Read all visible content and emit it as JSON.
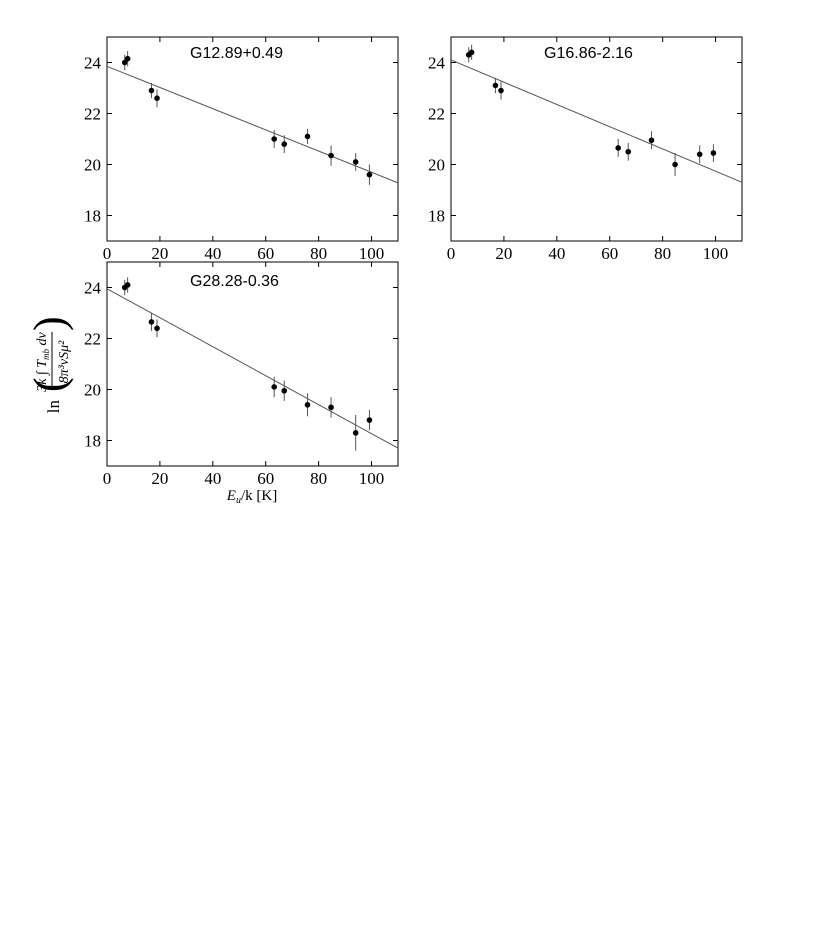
{
  "figure": {
    "xlabel_main": "E",
    "xlabel_sub": "u",
    "xlabel_rest": "/k [K]",
    "ylabel_ln": "ln",
    "ylabel_numerator": "3k ∫ T",
    "ylabel_numerator_sub": "mb",
    "ylabel_numerator_rest": " dv",
    "ylabel_denominator": "8π³νSμ²"
  },
  "chart_data": [
    {
      "type": "scatter",
      "title": "G12.89+0.49",
      "xlim": [
        0,
        110
      ],
      "ylim": [
        17,
        25
      ],
      "xticks": [
        0,
        20,
        40,
        60,
        80,
        100
      ],
      "xtick_labels": [
        "0",
        "20",
        "40",
        "60",
        "80",
        "100"
      ],
      "yticks": [
        18,
        20,
        22,
        24
      ],
      "ytick_labels": [
        "18",
        "20",
        "22",
        "24"
      ],
      "grid": false,
      "points": [
        {
          "x": 6.7,
          "y": 24.0,
          "err": 0.3
        },
        {
          "x": 7.8,
          "y": 24.15,
          "err": 0.3
        },
        {
          "x": 16.8,
          "y": 22.9,
          "err": 0.3
        },
        {
          "x": 18.9,
          "y": 22.6,
          "err": 0.35
        },
        {
          "x": 63.2,
          "y": 21.0,
          "err": 0.35
        },
        {
          "x": 67.0,
          "y": 20.8,
          "err": 0.35
        },
        {
          "x": 75.8,
          "y": 21.1,
          "err": 0.3
        },
        {
          "x": 84.7,
          "y": 20.35,
          "err": 0.4
        },
        {
          "x": 94.0,
          "y": 20.1,
          "err": 0.35
        },
        {
          "x": 99.2,
          "y": 19.6,
          "err": 0.4
        }
      ],
      "fit": {
        "x": [
          0,
          110
        ],
        "y": [
          23.85,
          19.28
        ]
      }
    },
    {
      "type": "scatter",
      "title": "G16.86-2.16",
      "xlim": [
        0,
        110
      ],
      "ylim": [
        17,
        25
      ],
      "xticks": [
        0,
        20,
        40,
        60,
        80,
        100
      ],
      "xtick_labels": [
        "0",
        "20",
        "40",
        "60",
        "80",
        "100"
      ],
      "yticks": [
        18,
        20,
        22,
        24
      ],
      "ytick_labels": [
        "18",
        "20",
        "22",
        "24"
      ],
      "grid": false,
      "points": [
        {
          "x": 6.7,
          "y": 24.3,
          "err": 0.3
        },
        {
          "x": 7.8,
          "y": 24.4,
          "err": 0.3
        },
        {
          "x": 16.8,
          "y": 23.1,
          "err": 0.3
        },
        {
          "x": 18.9,
          "y": 22.9,
          "err": 0.35
        },
        {
          "x": 63.2,
          "y": 20.65,
          "err": 0.35
        },
        {
          "x": 67.0,
          "y": 20.5,
          "err": 0.35
        },
        {
          "x": 75.8,
          "y": 20.95,
          "err": 0.35
        },
        {
          "x": 84.7,
          "y": 20.0,
          "err": 0.45
        },
        {
          "x": 94.0,
          "y": 20.4,
          "err": 0.35
        },
        {
          "x": 99.2,
          "y": 20.45,
          "err": 0.35
        }
      ],
      "fit": {
        "x": [
          0,
          110
        ],
        "y": [
          24.1,
          19.3
        ]
      }
    },
    {
      "type": "scatter",
      "title": "G28.28-0.36",
      "xlim": [
        0,
        110
      ],
      "ylim": [
        17,
        25
      ],
      "xticks": [
        0,
        20,
        40,
        60,
        80,
        100
      ],
      "xtick_labels": [
        "0",
        "20",
        "40",
        "60",
        "80",
        "100"
      ],
      "yticks": [
        18,
        20,
        22,
        24
      ],
      "ytick_labels": [
        "18",
        "20",
        "22",
        "24"
      ],
      "grid": false,
      "points": [
        {
          "x": 6.7,
          "y": 24.0,
          "err": 0.3
        },
        {
          "x": 7.8,
          "y": 24.1,
          "err": 0.3
        },
        {
          "x": 16.8,
          "y": 22.65,
          "err": 0.35
        },
        {
          "x": 18.9,
          "y": 22.4,
          "err": 0.35
        },
        {
          "x": 63.2,
          "y": 20.1,
          "err": 0.4
        },
        {
          "x": 67.0,
          "y": 19.95,
          "err": 0.4
        },
        {
          "x": 75.8,
          "y": 19.4,
          "err": 0.45
        },
        {
          "x": 84.7,
          "y": 19.3,
          "err": 0.4
        },
        {
          "x": 94.0,
          "y": 18.3,
          "err": 0.7
        },
        {
          "x": 99.2,
          "y": 18.8,
          "err": 0.4
        }
      ],
      "fit": {
        "x": [
          0,
          110
        ],
        "y": [
          23.95,
          17.7
        ]
      }
    }
  ]
}
